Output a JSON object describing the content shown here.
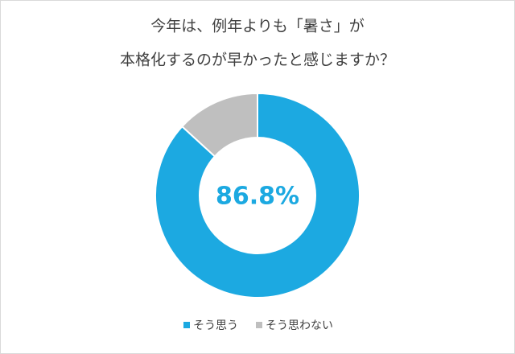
{
  "chart_data": {
    "type": "donut",
    "title": [
      "今年は、例年よりも「暑さ」が",
      "本格化するのが早かったと感じますか？"
    ],
    "categories": [
      "そう思う",
      "そう思わない"
    ],
    "values": [
      86.8,
      13.2
    ],
    "value_labels": [
      "86.8%",
      null
    ],
    "colors": [
      "#1ca9e1",
      "#bfbfbf"
    ],
    "legend": "bottom"
  }
}
